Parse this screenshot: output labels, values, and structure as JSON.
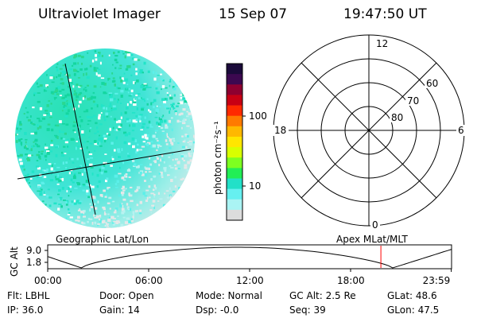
{
  "header": {
    "title": "Ultraviolet Imager",
    "date": "15 Sep 07",
    "time": "19:47:50 UT"
  },
  "colorbar": {
    "unit_label": "photon cm⁻²s⁻¹",
    "tick_labels": [
      "100",
      "10"
    ],
    "colors": [
      "#1a0a3a",
      "#3c0850",
      "#8e0030",
      "#c80014",
      "#ff2a00",
      "#ff7a00",
      "#ffb800",
      "#ffe600",
      "#d8ff00",
      "#7dff20",
      "#22ee55",
      "#22e0c8",
      "#66f0f0",
      "#aaf4f4",
      "#dcdcdc"
    ]
  },
  "polar_plot": {
    "mlt_labels": {
      "top": "12",
      "left": "18",
      "right": "6",
      "bottom": "0"
    },
    "lat_labels": [
      "60",
      "70",
      "80"
    ]
  },
  "orbit_panel": {
    "left_label": "Geographic Lat/Lon",
    "right_label": "Apex  MLat/MLT",
    "axis_label": "GC Alt",
    "y_ticks": [
      "9.0",
      "1.8"
    ],
    "time_ticks": [
      "00:00",
      "06:00",
      "12:00",
      "18:00",
      "23:59"
    ],
    "current_time_hours": 19.8
  },
  "info": {
    "row1": [
      {
        "label": "Flt: LBHL"
      },
      {
        "label": "Door: Open"
      },
      {
        "label": "Mode: Normal"
      },
      {
        "label": "GC Alt: 2.5 Re"
      },
      {
        "label": "GLat:  48.6"
      }
    ],
    "row2": [
      {
        "label": "IP: 36.0"
      },
      {
        "label": "Gain: 14"
      },
      {
        "label": "Dsp:   -0.0"
      },
      {
        "label": "Seq: 39"
      },
      {
        "label": "GLon:  47.5"
      }
    ]
  }
}
